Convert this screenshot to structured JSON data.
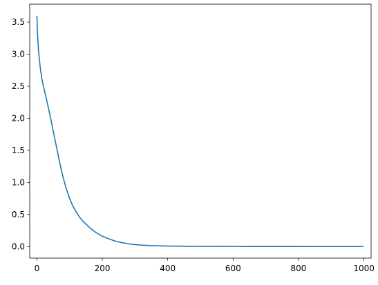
{
  "chart_data": {
    "type": "line",
    "title": "",
    "xlabel": "",
    "ylabel": "",
    "xlim": [
      -22,
      1022
    ],
    "ylim": [
      -0.18,
      3.78
    ],
    "grid": false,
    "legend": "none",
    "x_ticks": [
      0,
      200,
      400,
      600,
      800,
      1000
    ],
    "y_ticks": [
      0.0,
      0.5,
      1.0,
      1.5,
      2.0,
      2.5,
      3.0,
      3.5
    ],
    "x_tick_labels": [
      "0",
      "200",
      "400",
      "600",
      "800",
      "1000"
    ],
    "y_tick_labels": [
      "0.0",
      "0.5",
      "1.0",
      "1.5",
      "2.0",
      "2.5",
      "3.0",
      "3.5"
    ],
    "series": [
      {
        "color": "#1f77b4",
        "x": [
          0,
          2,
          5,
          10,
          15,
          20,
          30,
          40,
          50,
          60,
          70,
          80,
          90,
          100,
          110,
          120,
          130,
          140,
          150,
          160,
          170,
          180,
          190,
          200,
          220,
          240,
          260,
          280,
          300,
          320,
          340,
          360,
          380,
          400,
          450,
          500,
          550,
          600,
          650,
          700,
          750,
          800,
          850,
          900,
          950,
          999
        ],
        "y": [
          3.6,
          3.3,
          3.05,
          2.8,
          2.62,
          2.5,
          2.28,
          2.05,
          1.8,
          1.55,
          1.3,
          1.08,
          0.9,
          0.75,
          0.63,
          0.54,
          0.46,
          0.4,
          0.35,
          0.3,
          0.26,
          0.22,
          0.19,
          0.16,
          0.12,
          0.085,
          0.06,
          0.042,
          0.03,
          0.022,
          0.017,
          0.013,
          0.01,
          0.008,
          0.005,
          0.003,
          0.002,
          0.0015,
          0.001,
          0.0008,
          0.0006,
          0.0005,
          0.0004,
          0.0003,
          0.0002,
          0.0001
        ]
      }
    ]
  }
}
